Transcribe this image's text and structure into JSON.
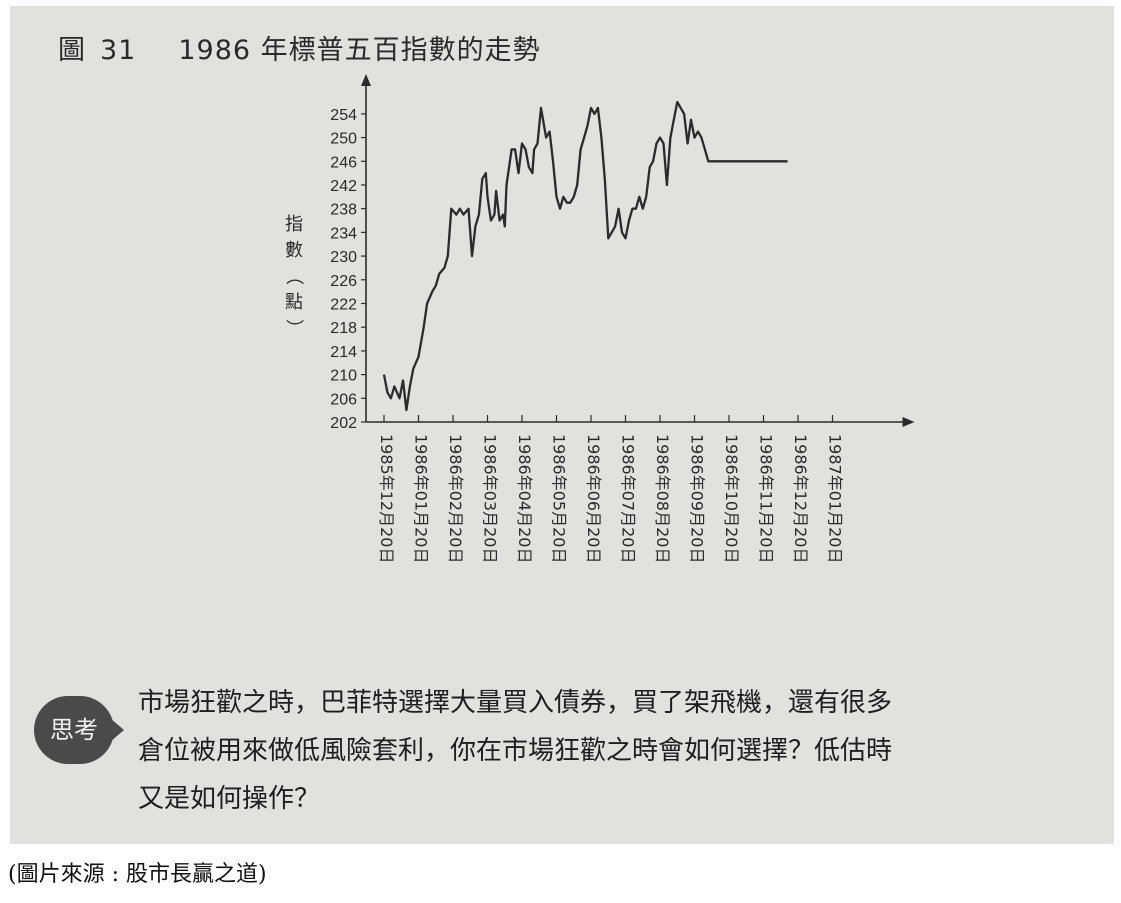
{
  "figure_label": "圖",
  "figure_number": "31",
  "figure_title": "1986 年標普五百指數的走勢",
  "chart_data": {
    "type": "line",
    "title": "1986 年標普五百指數的走勢",
    "ylabel": "指數（點）",
    "xlabel": "",
    "ylim": [
      202,
      256
    ],
    "yticks": [
      202,
      206,
      210,
      214,
      218,
      222,
      226,
      230,
      234,
      238,
      242,
      246,
      250,
      254
    ],
    "categories": [
      "1985年12月20日",
      "1986年01月20日",
      "1986年02月20日",
      "1986年03月20日",
      "1986年04月20日",
      "1986年05月20日",
      "1986年06月20日",
      "1986年07月20日",
      "1986年08月20日",
      "1986年09月20日",
      "1986年10月20日",
      "1986年11月20日",
      "1986年12月20日",
      "1987年01月20日"
    ],
    "grid": false,
    "legend": "none",
    "series": [
      {
        "x": [
          0.0,
          0.1,
          0.2,
          0.3,
          0.45,
          0.55,
          0.65,
          0.75,
          0.85,
          1.0,
          1.15,
          1.25,
          1.4,
          1.5,
          1.6,
          1.75,
          1.85,
          1.95,
          2.1,
          2.2,
          2.3,
          2.45,
          2.55,
          2.65,
          2.75,
          2.85,
          2.95,
          3.0,
          3.1,
          3.2,
          3.25,
          3.35,
          3.45,
          3.5,
          3.55,
          3.7,
          3.8,
          3.9,
          4.0,
          4.1,
          4.2,
          4.3,
          4.35,
          4.45,
          4.55,
          4.7,
          4.8,
          4.9,
          5.0,
          5.1,
          5.2,
          5.3,
          5.4,
          5.5,
          5.6,
          5.7,
          5.8,
          5.9,
          6.0,
          6.1,
          6.2,
          6.3,
          6.4,
          6.5,
          6.6,
          6.7,
          6.8,
          6.9,
          7.0,
          7.1,
          7.2,
          7.3,
          7.4,
          7.5,
          7.6,
          7.7,
          7.8,
          7.9,
          8.0,
          8.1,
          8.2,
          8.3,
          8.4,
          8.5,
          8.6,
          8.7,
          8.8,
          8.9,
          9.0,
          9.1,
          9.2,
          9.3,
          9.4,
          9.5,
          9.6,
          9.7,
          9.8,
          9.9,
          10.0,
          10.1,
          10.2,
          10.3,
          10.4,
          10.5,
          10.6,
          10.7,
          10.8,
          10.9,
          11.0,
          11.1,
          11.2,
          11.3,
          11.4,
          11.5,
          11.6,
          11.7
        ],
        "values": [
          210,
          207,
          206,
          208,
          206,
          209,
          204,
          208,
          211,
          213,
          218,
          222,
          224,
          225,
          227,
          228,
          230,
          238,
          237,
          238,
          237,
          238,
          230,
          235,
          237,
          243,
          244,
          240,
          236,
          237,
          241,
          236,
          237,
          235,
          242,
          248,
          248,
          244,
          249,
          248,
          245,
          244,
          248,
          249,
          255,
          250,
          251,
          246,
          240,
          238,
          240,
          239,
          239,
          240,
          242,
          248,
          250,
          252,
          255,
          254,
          255,
          250,
          243,
          233,
          234,
          235,
          238,
          234,
          233,
          236,
          238,
          238,
          240,
          238,
          240,
          245,
          246,
          249,
          250,
          249,
          242,
          250,
          253,
          256,
          255,
          254,
          249,
          253,
          250,
          251,
          250,
          248,
          246,
          246,
          246,
          246,
          246,
          246,
          246,
          246,
          246,
          246,
          246,
          246,
          246,
          246,
          246,
          246,
          246,
          246,
          246,
          246,
          246,
          246,
          246,
          246
        ]
      }
    ]
  },
  "think": {
    "badge": "思考",
    "lines": [
      "市場狂歡之時，巴菲特選擇大量買入債券，買了架飛機，還有很多",
      "倉位被用來做低風險套利，你在市場狂歡之時會如何選擇？低估時",
      "又是如何操作？"
    ]
  },
  "credit": "(圖片來源 : 股市長贏之道)"
}
